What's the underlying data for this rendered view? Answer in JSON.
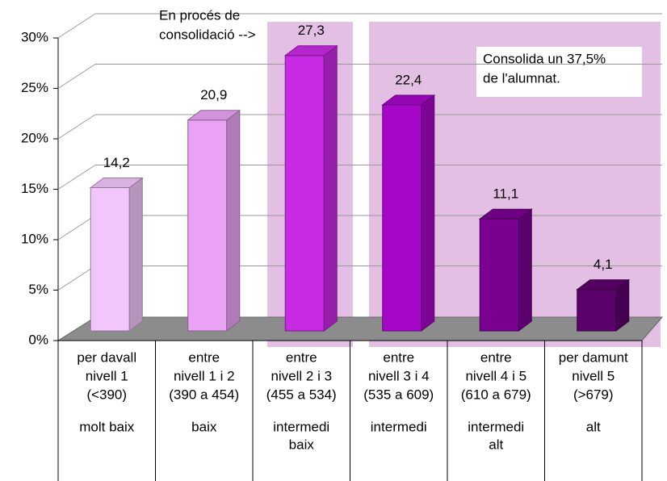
{
  "chart_data": {
    "type": "bar3d",
    "categories": [
      [
        "per davall",
        "nivell 1",
        "(<390)"
      ],
      [
        "entre",
        "nivell 1 i 2",
        "(390 a 454)"
      ],
      [
        "entre",
        "nivell 2 i 3",
        "(455 a 534)"
      ],
      [
        "entre",
        "nivell 3 i 4",
        "(535 a 609)"
      ],
      [
        "entre",
        "nivell 4 i 5",
        "(610 a 679)"
      ],
      [
        "per damunt",
        "nivell 5",
        "(>679)"
      ]
    ],
    "levels": [
      [
        "molt baix"
      ],
      [
        "baix"
      ],
      [
        "intermedi",
        "baix"
      ],
      [
        "intermedi"
      ],
      [
        "intermedi",
        "alt"
      ],
      [
        "alt"
      ]
    ],
    "values": [
      14.2,
      20.9,
      27.3,
      22.4,
      11.1,
      4.1
    ],
    "value_labels": [
      "14,2",
      "20,9",
      "27,3",
      "22,4",
      "11,1",
      "4,1"
    ],
    "colors": [
      "#f2c6fa",
      "#e9a2f4",
      "#c92ae4",
      "#a606c8",
      "#7a0092",
      "#5c006c"
    ],
    "ylim": [
      0,
      30
    ],
    "yticks": [
      {
        "value": 0,
        "label": "0%"
      },
      {
        "value": 5,
        "label": "5%"
      },
      {
        "value": 10,
        "label": "10%"
      },
      {
        "value": 15,
        "label": "15%"
      },
      {
        "value": 20,
        "label": "20%"
      },
      {
        "value": 25,
        "label": "25%"
      },
      {
        "value": 30,
        "label": "30%"
      }
    ],
    "grid": true,
    "annotations": [
      [
        "En procés de",
        "consolidació -->"
      ],
      [
        "Consolida un 37,5%",
        "de l'alumnat."
      ]
    ]
  }
}
